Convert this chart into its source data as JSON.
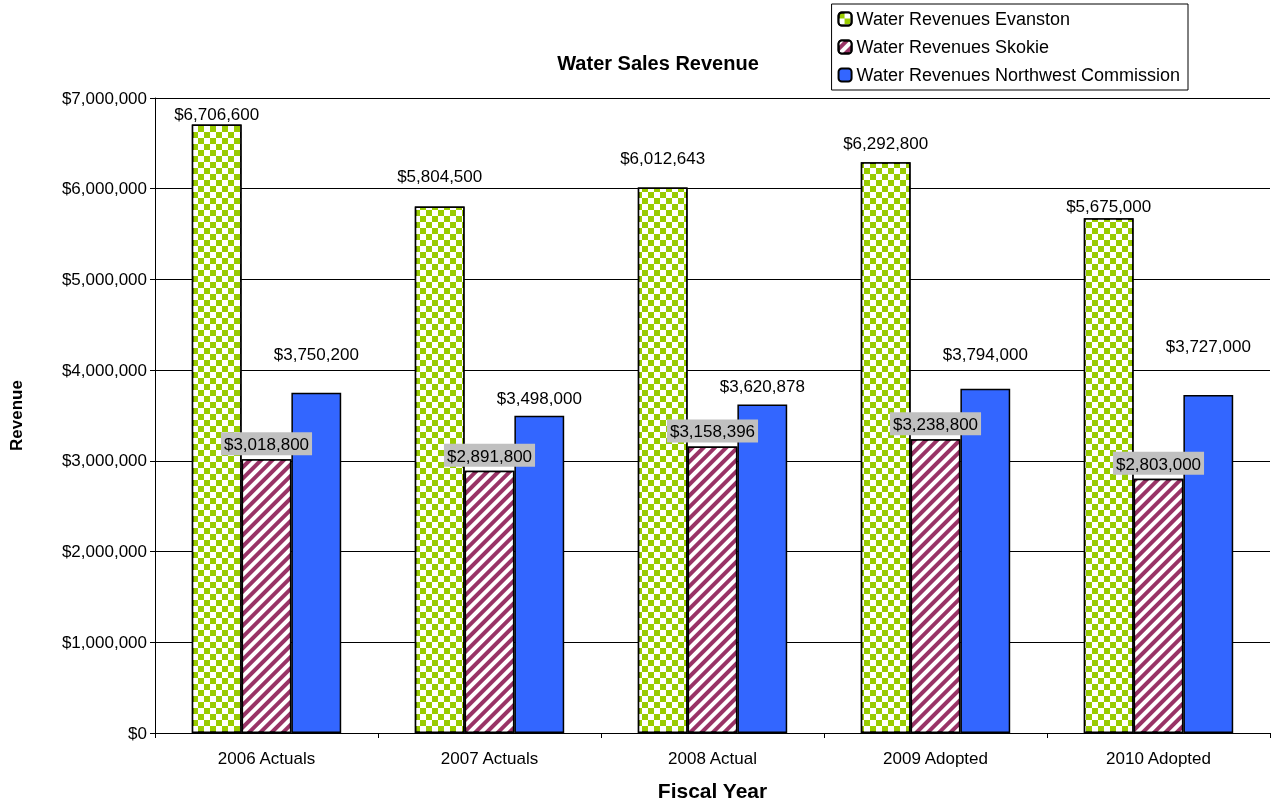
{
  "chart_data": {
    "type": "bar",
    "title": "Water Sales Revenue",
    "xlabel": "Fiscal Year",
    "ylabel": "Revenue",
    "categories": [
      "2006 Actuals",
      "2007 Actuals",
      "2008 Actual",
      "2009 Adopted",
      "2010 Adopted"
    ],
    "series": [
      {
        "name": "Water Revenues Evanston",
        "color": "#99cc00",
        "values": [
          6706600,
          5804500,
          6012643,
          6292800,
          5675000
        ],
        "value_labels": [
          "$6,706,600",
          "$5,804,500",
          "$6,012,643",
          "$6,292,800",
          "$5,675,000"
        ]
      },
      {
        "name": "Water Revenues Skokie",
        "color": "#993366",
        "values": [
          3018800,
          2891800,
          3158396,
          3238800,
          2803000
        ],
        "value_labels": [
          "$3,018,800",
          "$2,891,800",
          "$3,158,396",
          "$3,238,800",
          "$2,803,000"
        ]
      },
      {
        "name": "Water Revenues Northwest Commission",
        "color": "#3366ff",
        "values": [
          3750200,
          3498000,
          3620878,
          3794000,
          3727000
        ],
        "value_labels": [
          "$3,750,200",
          "$3,498,000",
          "$3,620,878",
          "$3,794,000",
          "$3,727,000"
        ]
      }
    ],
    "ylim": [
      0,
      7000000
    ],
    "yticks": [
      {
        "value": 0,
        "label": "$0"
      },
      {
        "value": 1000000,
        "label": "$1,000,000"
      },
      {
        "value": 2000000,
        "label": "$2,000,000"
      },
      {
        "value": 3000000,
        "label": "$3,000,000"
      },
      {
        "value": 4000000,
        "label": "$4,000,000"
      },
      {
        "value": 5000000,
        "label": "$5,000,000"
      },
      {
        "value": 6000000,
        "label": "$6,000,000"
      },
      {
        "value": 7000000,
        "label": "$7,000,000"
      }
    ],
    "grid": "y",
    "legend": "top right"
  }
}
